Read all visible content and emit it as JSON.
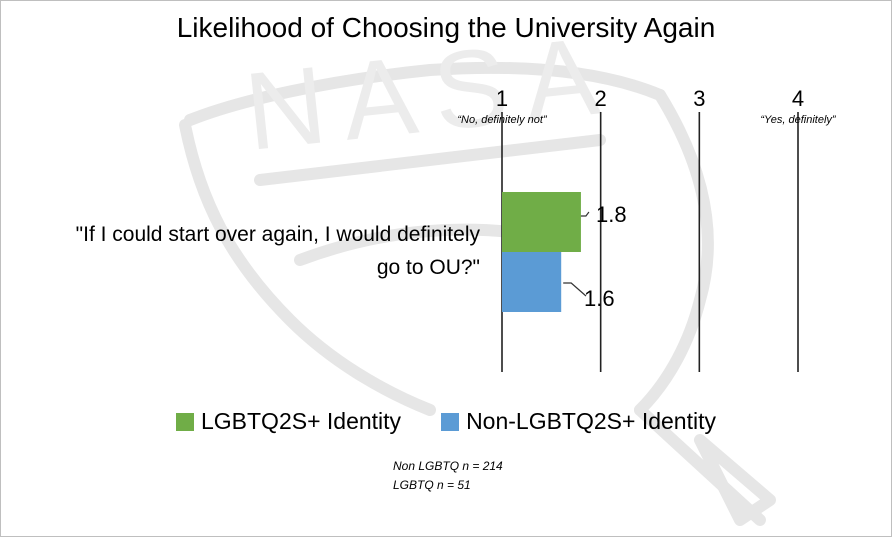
{
  "chart_data": {
    "type": "bar",
    "orientation": "horizontal",
    "title": "Likelihood of Choosing the University Again",
    "categories": [
      "\"If I could start over again, I would definitely go to OU?\""
    ],
    "series": [
      {
        "name": "LGBTQ2S+ Identity",
        "values": [
          1.8
        ],
        "color": "#70ad47"
      },
      {
        "name": "Non-LGBTQ2S+ Identity",
        "values": [
          1.6
        ],
        "color": "#5b9bd5"
      }
    ],
    "xlim": [
      1,
      4
    ],
    "ticks": [
      {
        "value": 1,
        "label": "1",
        "sublabel": "“No, definitely not”"
      },
      {
        "value": 2,
        "label": "2",
        "sublabel": ""
      },
      {
        "value": 3,
        "label": "3",
        "sublabel": ""
      },
      {
        "value": 4,
        "label": "4",
        "sublabel": "“Yes, definitely”"
      }
    ],
    "data_labels": [
      "1.8",
      "1.6"
    ],
    "grid": true,
    "legend_position": "bottom"
  },
  "notes": [
    "Non LGBTQ n = 214",
    "LGBTQ n = 51"
  ],
  "watermark": "NASA"
}
